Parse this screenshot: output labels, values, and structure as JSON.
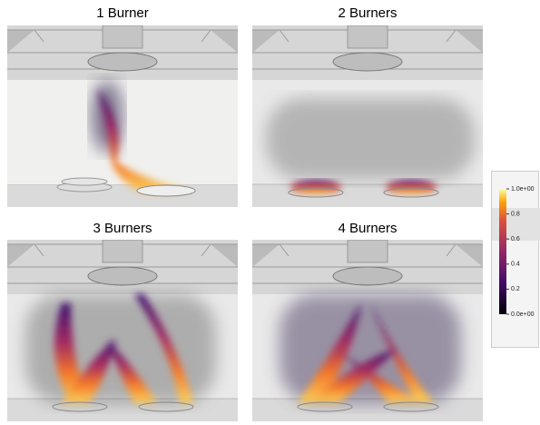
{
  "panels": [
    {
      "title": "1 Burner"
    },
    {
      "title": "2 Burners"
    },
    {
      "title": "3 Burners"
    },
    {
      "title": "4 Burners"
    }
  ],
  "colorbar": {
    "lim": [
      0,
      1
    ],
    "ticks": [
      {
        "value": 1,
        "label": "1.0e+00"
      },
      0.8,
      0.6,
      0.4,
      0.2,
      {
        "value": 0,
        "label": "0.0e+00"
      }
    ]
  }
}
